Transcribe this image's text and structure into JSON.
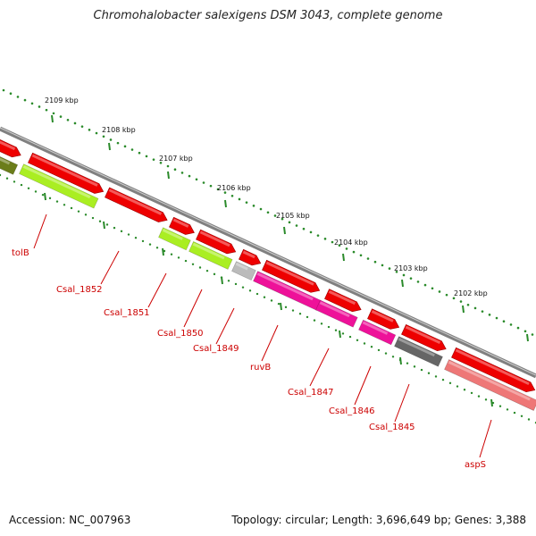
{
  "title": "Chromohalobacter salexigens DSM 3043, complete genome",
  "footer": {
    "accession": "Accession: NC_007963",
    "topology": "Topology: circular; Length: 3,696,649 bp; Genes: 3,388"
  },
  "colors": {
    "backbone": "#808080",
    "forward_gene": "#ee0000",
    "reverse_cds_lime": "#aaee22",
    "reverse_cds_olive": "#6b7d1a",
    "reverse_cds_magenta": "#ee1199",
    "reverse_cds_gray": "#666666",
    "reverse_cds_light": "#bbbbbb",
    "reverse_cds_pink": "#ee7777",
    "ticks": "#2a8a2a",
    "labels": "#cc0000"
  },
  "kbp_labels": [
    "2109 kbp",
    "2108 kbp",
    "2107 kbp",
    "2106 kbp",
    "2105 kbp",
    "2104 kbp",
    "2103 kbp",
    "2102 kbp"
  ],
  "gene_labels": [
    "tolB",
    "Csal_1852",
    "Csal_1851",
    "Csal_1850",
    "Csal_1849",
    "ruvB",
    "Csal_1847",
    "Csal_1846",
    "Csal_1845",
    "aspS"
  ]
}
